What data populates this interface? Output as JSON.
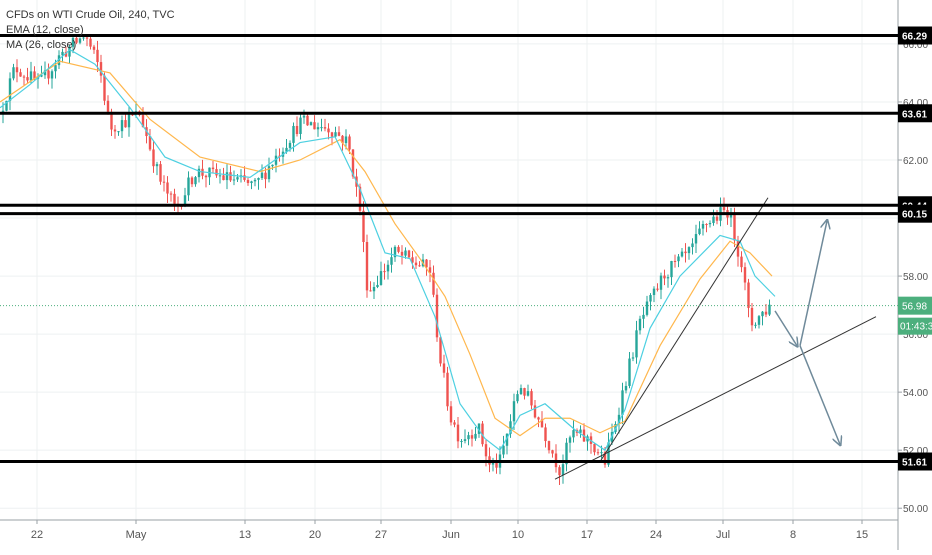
{
  "chart_data": {
    "type": "candlestick",
    "title": "CFDs on WTI Crude Oil, 240, TVC",
    "indicators": [
      "EMA (12, close)",
      "MA (26, close)"
    ],
    "ylim": [
      49.8,
      67.0
    ],
    "y_ticks": [
      "50.00",
      "52.00",
      "54.00",
      "56.00",
      "58.00",
      "60.00",
      "62.00",
      "64.00",
      "66.00"
    ],
    "x_ticks": [
      "22",
      "May",
      "13",
      "20",
      "27",
      "Jun",
      "10",
      "17",
      "24",
      "Jul",
      "8",
      "15"
    ],
    "current_price": "56.98",
    "countdown": "01:43:37",
    "horizontal_levels": [
      {
        "label": "66.29",
        "value": 66.29
      },
      {
        "label": "63.61",
        "value": 63.61
      },
      {
        "label": "60.44",
        "value": 60.44
      },
      {
        "label": "60.15",
        "value": 60.15
      },
      {
        "label": "51.61",
        "value": 51.61
      }
    ],
    "price_path": [
      [
        0,
        63.6
      ],
      [
        15,
        65.2
      ],
      [
        40,
        64.6
      ],
      [
        60,
        65.6
      ],
      [
        85,
        66.3
      ],
      [
        100,
        65.1
      ],
      [
        110,
        63.1
      ],
      [
        140,
        63.6
      ],
      [
        160,
        61.3
      ],
      [
        176,
        60.3
      ],
      [
        195,
        61.6
      ],
      [
        225,
        61.4
      ],
      [
        255,
        61.1
      ],
      [
        300,
        63.3
      ],
      [
        330,
        63.1
      ],
      [
        348,
        62.6
      ],
      [
        360,
        60.3
      ],
      [
        368,
        57.4
      ],
      [
        395,
        58.8
      ],
      [
        430,
        58.2
      ],
      [
        440,
        55.2
      ],
      [
        450,
        53.2
      ],
      [
        460,
        52.4
      ],
      [
        478,
        52.8
      ],
      [
        490,
        51.4
      ],
      [
        500,
        51.6
      ],
      [
        520,
        54.3
      ],
      [
        540,
        53.0
      ],
      [
        560,
        51.3
      ],
      [
        572,
        52.6
      ],
      [
        590,
        52.3
      ],
      [
        605,
        51.6
      ],
      [
        625,
        54.3
      ],
      [
        640,
        56.4
      ],
      [
        665,
        58.1
      ],
      [
        690,
        58.8
      ],
      [
        705,
        59.8
      ],
      [
        728,
        60.3
      ],
      [
        742,
        58.4
      ],
      [
        750,
        56.3
      ],
      [
        770,
        56.98
      ]
    ],
    "ema_path": [
      [
        0,
        63.8
      ],
      [
        30,
        64.6
      ],
      [
        70,
        65.8
      ],
      [
        95,
        65.3
      ],
      [
        130,
        63.8
      ],
      [
        165,
        62.1
      ],
      [
        200,
        61.6
      ],
      [
        250,
        61.4
      ],
      [
        300,
        62.6
      ],
      [
        335,
        62.8
      ],
      [
        360,
        61.0
      ],
      [
        385,
        58.8
      ],
      [
        410,
        58.6
      ],
      [
        435,
        56.6
      ],
      [
        460,
        53.6
      ],
      [
        485,
        52.4
      ],
      [
        500,
        52.0
      ],
      [
        520,
        53.2
      ],
      [
        545,
        53.6
      ],
      [
        575,
        52.7
      ],
      [
        605,
        52.0
      ],
      [
        625,
        53.4
      ],
      [
        650,
        56.2
      ],
      [
        680,
        58.0
      ],
      [
        720,
        59.4
      ],
      [
        740,
        59.2
      ],
      [
        755,
        58.0
      ],
      [
        775,
        57.3
      ]
    ],
    "ma_path": [
      [
        0,
        64.0
      ],
      [
        60,
        65.4
      ],
      [
        110,
        65.0
      ],
      [
        150,
        63.4
      ],
      [
        200,
        62.1
      ],
      [
        260,
        61.6
      ],
      [
        300,
        62.0
      ],
      [
        340,
        62.7
      ],
      [
        365,
        61.6
      ],
      [
        395,
        59.8
      ],
      [
        420,
        58.6
      ],
      [
        445,
        57.3
      ],
      [
        470,
        55.3
      ],
      [
        495,
        53.1
      ],
      [
        520,
        52.5
      ],
      [
        545,
        53.1
      ],
      [
        570,
        53.1
      ],
      [
        600,
        52.6
      ],
      [
        625,
        53.0
      ],
      [
        660,
        55.6
      ],
      [
        700,
        57.9
      ],
      [
        730,
        59.2
      ],
      [
        750,
        58.8
      ],
      [
        772,
        58.0
      ]
    ],
    "trendlines": [
      {
        "name": "steep-trendline",
        "x": [
          600,
          768
        ],
        "y": [
          51.6,
          60.7
        ]
      },
      {
        "name": "lower-trendline",
        "x": [
          555,
          876
        ],
        "y": [
          51.0,
          56.6
        ]
      }
    ],
    "projection_arrows": [
      {
        "name": "arrow-down-to-trendline",
        "x": [
          775,
          797
        ],
        "y": [
          56.8,
          55.6
        ]
      },
      {
        "name": "arrow-up-scenario",
        "x": [
          800,
          827
        ],
        "y": [
          55.6,
          59.9
        ]
      },
      {
        "name": "arrow-down-scenario",
        "x": [
          800,
          840
        ],
        "y": [
          55.6,
          52.2
        ]
      }
    ],
    "colors": {
      "up": "#26a69a",
      "down": "#ef5350",
      "ema": "#4dd0e1",
      "ma": "#ffb74d",
      "trendline": "#333333",
      "arrow": "#6f8a9a",
      "price_label": "#4caf7d"
    }
  }
}
